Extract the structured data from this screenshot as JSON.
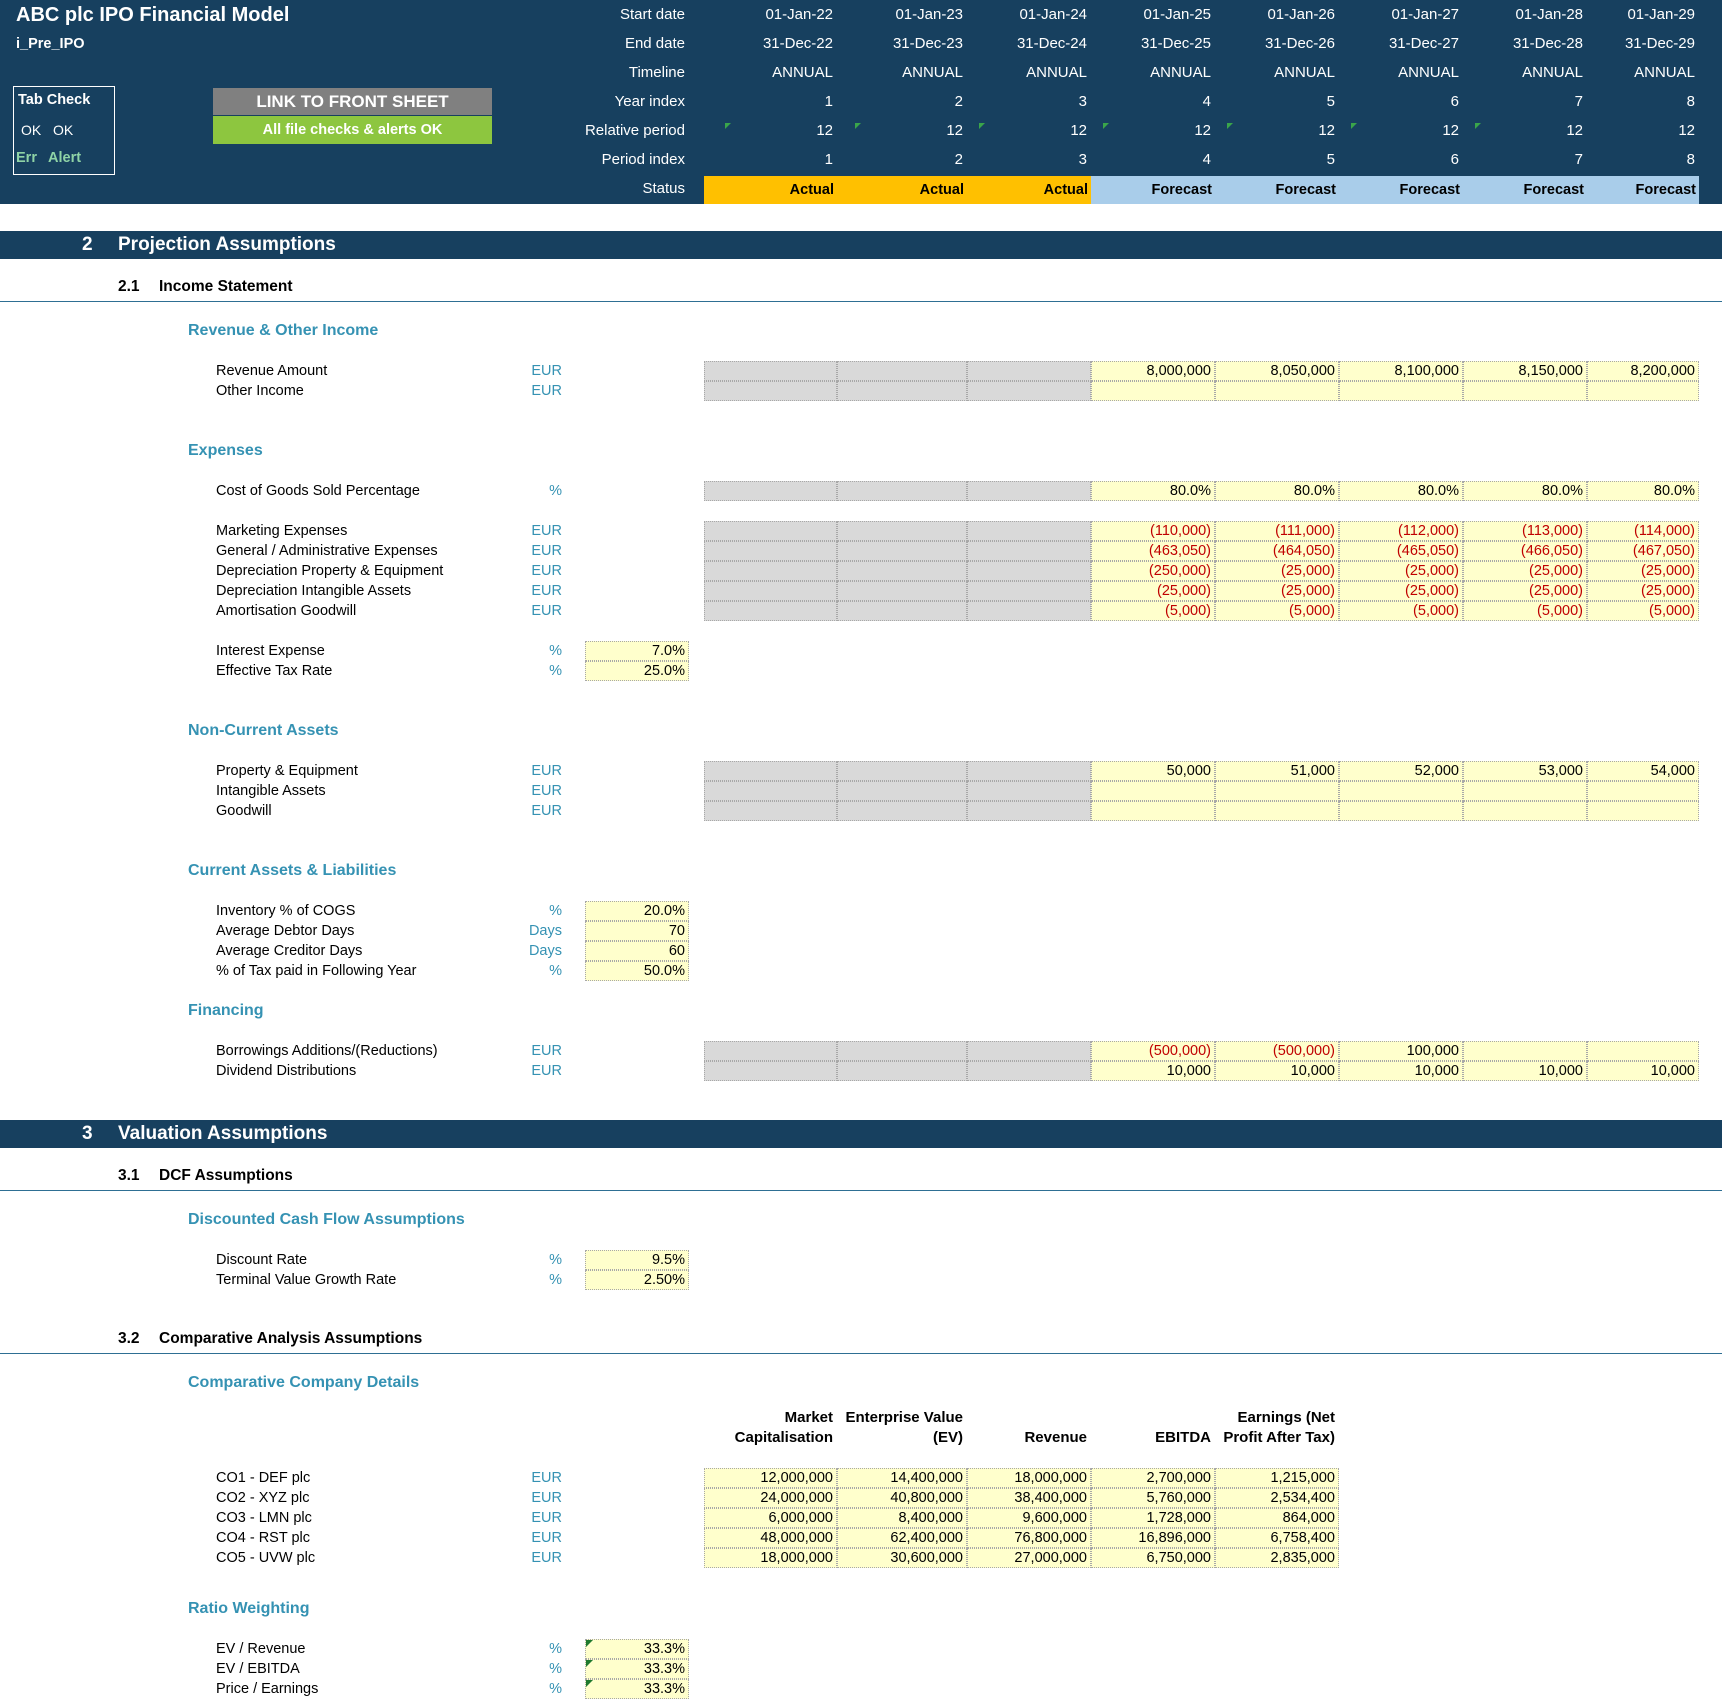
{
  "app": {
    "title": "ABC plc IPO Financial Model",
    "sheet": "i_Pre_IPO"
  },
  "tab_check": {
    "title": "Tab Check",
    "ok1": "OK",
    "ok2": "OK",
    "err": "Err",
    "alert": "Alert"
  },
  "buttons": {
    "front_sheet": "LINK TO FRONT SHEET",
    "checks": "All file checks & alerts OK"
  },
  "timeline": {
    "labels": {
      "start": "Start date",
      "end": "End date",
      "timeline": "Timeline",
      "year_index": "Year index",
      "relative": "Relative period",
      "period": "Period index",
      "status": "Status"
    },
    "start": [
      "01-Jan-22",
      "01-Jan-23",
      "01-Jan-24",
      "01-Jan-25",
      "01-Jan-26",
      "01-Jan-27",
      "01-Jan-28",
      "01-Jan-29"
    ],
    "end": [
      "31-Dec-22",
      "31-Dec-23",
      "31-Dec-24",
      "31-Dec-25",
      "31-Dec-26",
      "31-Dec-27",
      "31-Dec-28",
      "31-Dec-29"
    ],
    "timeline": [
      "ANNUAL",
      "ANNUAL",
      "ANNUAL",
      "ANNUAL",
      "ANNUAL",
      "ANNUAL",
      "ANNUAL",
      "ANNUAL"
    ],
    "year_index": [
      "1",
      "2",
      "3",
      "4",
      "5",
      "6",
      "7",
      "8"
    ],
    "relative": [
      "12",
      "12",
      "12",
      "12",
      "12",
      "12",
      "12",
      "12"
    ],
    "period": [
      "1",
      "2",
      "3",
      "4",
      "5",
      "6",
      "7",
      "8"
    ],
    "status": [
      "Actual",
      "Actual",
      "Actual",
      "Forecast",
      "Forecast",
      "Forecast",
      "Forecast",
      "Forecast"
    ],
    "colors": {
      "actual": "#ffc000",
      "forecast": "#a9cdea"
    }
  },
  "sections": {
    "s2": {
      "num": "2",
      "title": "Projection Assumptions"
    },
    "s21": {
      "num": "2.1",
      "title": "Income Statement"
    },
    "s3": {
      "num": "3",
      "title": "Valuation Assumptions"
    },
    "s31": {
      "num": "3.1",
      "title": "DCF Assumptions"
    },
    "s32": {
      "num": "3.2",
      "title": "Comparative Analysis Assumptions"
    }
  },
  "groups": {
    "revenue": "Revenue & Other Income",
    "expenses": "Expenses",
    "nca": "Non-Current Assets",
    "cal": "Current Assets & Liabilities",
    "financing": "Financing",
    "dcf": "Discounted Cash Flow Assumptions",
    "comp": "Comparative Company Details",
    "ratio": "Ratio Weighting"
  },
  "revenue_rows": [
    {
      "label": "Revenue Amount",
      "unit": "EUR",
      "values": [
        "8,000,000",
        "8,050,000",
        "8,100,000",
        "8,150,000",
        "8,200,000"
      ]
    },
    {
      "label": "Other Income",
      "unit": "EUR",
      "values": [
        "",
        "",
        "",
        "",
        ""
      ]
    }
  ],
  "cogs_row": {
    "label": "Cost of Goods Sold Percentage",
    "unit": "%",
    "values": [
      "80.0%",
      "80.0%",
      "80.0%",
      "80.0%",
      "80.0%"
    ]
  },
  "expense_rows": [
    {
      "label": "Marketing Expenses",
      "unit": "EUR",
      "values": [
        "(110,000)",
        "(111,000)",
        "(112,000)",
        "(113,000)",
        "(114,000)"
      ]
    },
    {
      "label": "General / Administrative Expenses",
      "unit": "EUR",
      "values": [
        "(463,050)",
        "(464,050)",
        "(465,050)",
        "(466,050)",
        "(467,050)"
      ]
    },
    {
      "label": "Depreciation Property & Equipment",
      "unit": "EUR",
      "values": [
        "(250,000)",
        "(25,000)",
        "(25,000)",
        "(25,000)",
        "(25,000)"
      ]
    },
    {
      "label": "Depreciation Intangible Assets",
      "unit": "EUR",
      "values": [
        "(25,000)",
        "(25,000)",
        "(25,000)",
        "(25,000)",
        "(25,000)"
      ]
    },
    {
      "label": "Amortisation Goodwill",
      "unit": "EUR",
      "values": [
        "(5,000)",
        "(5,000)",
        "(5,000)",
        "(5,000)",
        "(5,000)"
      ]
    }
  ],
  "rate_rows": [
    {
      "label": "Interest Expense",
      "unit": "%",
      "value": "7.0%"
    },
    {
      "label": "Effective Tax Rate",
      "unit": "%",
      "value": "25.0%"
    }
  ],
  "nca_rows": [
    {
      "label": "Property & Equipment",
      "unit": "EUR",
      "values": [
        "50,000",
        "51,000",
        "52,000",
        "53,000",
        "54,000"
      ]
    },
    {
      "label": "Intangible Assets",
      "unit": "EUR",
      "values": [
        "",
        "",
        "",
        "",
        ""
      ]
    },
    {
      "label": "Goodwill",
      "unit": "EUR",
      "values": [
        "",
        "",
        "",
        "",
        ""
      ]
    }
  ],
  "cal_rows": [
    {
      "label": "Inventory % of COGS",
      "unit": "%",
      "value": "20.0%"
    },
    {
      "label": "Average Debtor Days",
      "unit": "Days",
      "value": "70"
    },
    {
      "label": "Average Creditor Days",
      "unit": "Days",
      "value": "60"
    },
    {
      "label": "% of Tax paid in Following Year",
      "unit": "%",
      "value": "50.0%"
    }
  ],
  "fin_rows": [
    {
      "label": "Borrowings Additions/(Reductions)",
      "unit": "EUR",
      "values": [
        "(500,000)",
        "(500,000)",
        "100,000",
        "",
        ""
      ]
    },
    {
      "label": "Dividend Distributions",
      "unit": "EUR",
      "values": [
        "10,000",
        "10,000",
        "10,000",
        "10,000",
        "10,000"
      ]
    }
  ],
  "dcf_rows": [
    {
      "label": "Discount Rate",
      "unit": "%",
      "value": "9.5%"
    },
    {
      "label": "Terminal Value Growth Rate",
      "unit": "%",
      "value": "2.50%"
    }
  ],
  "comp_headers": [
    [
      "Market",
      "Capitalisation"
    ],
    [
      "Enterprise Value",
      "(EV)"
    ],
    [
      "",
      "Revenue"
    ],
    [
      "",
      "EBITDA"
    ],
    [
      "Earnings (Net",
      "Profit After Tax)"
    ]
  ],
  "comp_rows": [
    {
      "label": "CO1 - DEF plc",
      "unit": "EUR",
      "values": [
        "12,000,000",
        "14,400,000",
        "18,000,000",
        "2,700,000",
        "1,215,000"
      ]
    },
    {
      "label": "CO2 - XYZ plc",
      "unit": "EUR",
      "values": [
        "24,000,000",
        "40,800,000",
        "38,400,000",
        "5,760,000",
        "2,534,400"
      ]
    },
    {
      "label": "CO3 - LMN plc",
      "unit": "EUR",
      "values": [
        "6,000,000",
        "8,400,000",
        "9,600,000",
        "1,728,000",
        "864,000"
      ]
    },
    {
      "label": "CO4 - RST plc",
      "unit": "EUR",
      "values": [
        "48,000,000",
        "62,400,000",
        "76,800,000",
        "16,896,000",
        "6,758,400"
      ]
    },
    {
      "label": "CO5 - UVW plc",
      "unit": "EUR",
      "values": [
        "18,000,000",
        "30,600,000",
        "27,000,000",
        "6,750,000",
        "2,835,000"
      ]
    }
  ],
  "ratio_rows": [
    {
      "label": "EV / Revenue",
      "unit": "%",
      "value": "33.3%"
    },
    {
      "label": "EV / EBITDA",
      "unit": "%",
      "value": "33.3%"
    },
    {
      "label": "Price / Earnings",
      "unit": "%",
      "value": "33.3%"
    }
  ]
}
